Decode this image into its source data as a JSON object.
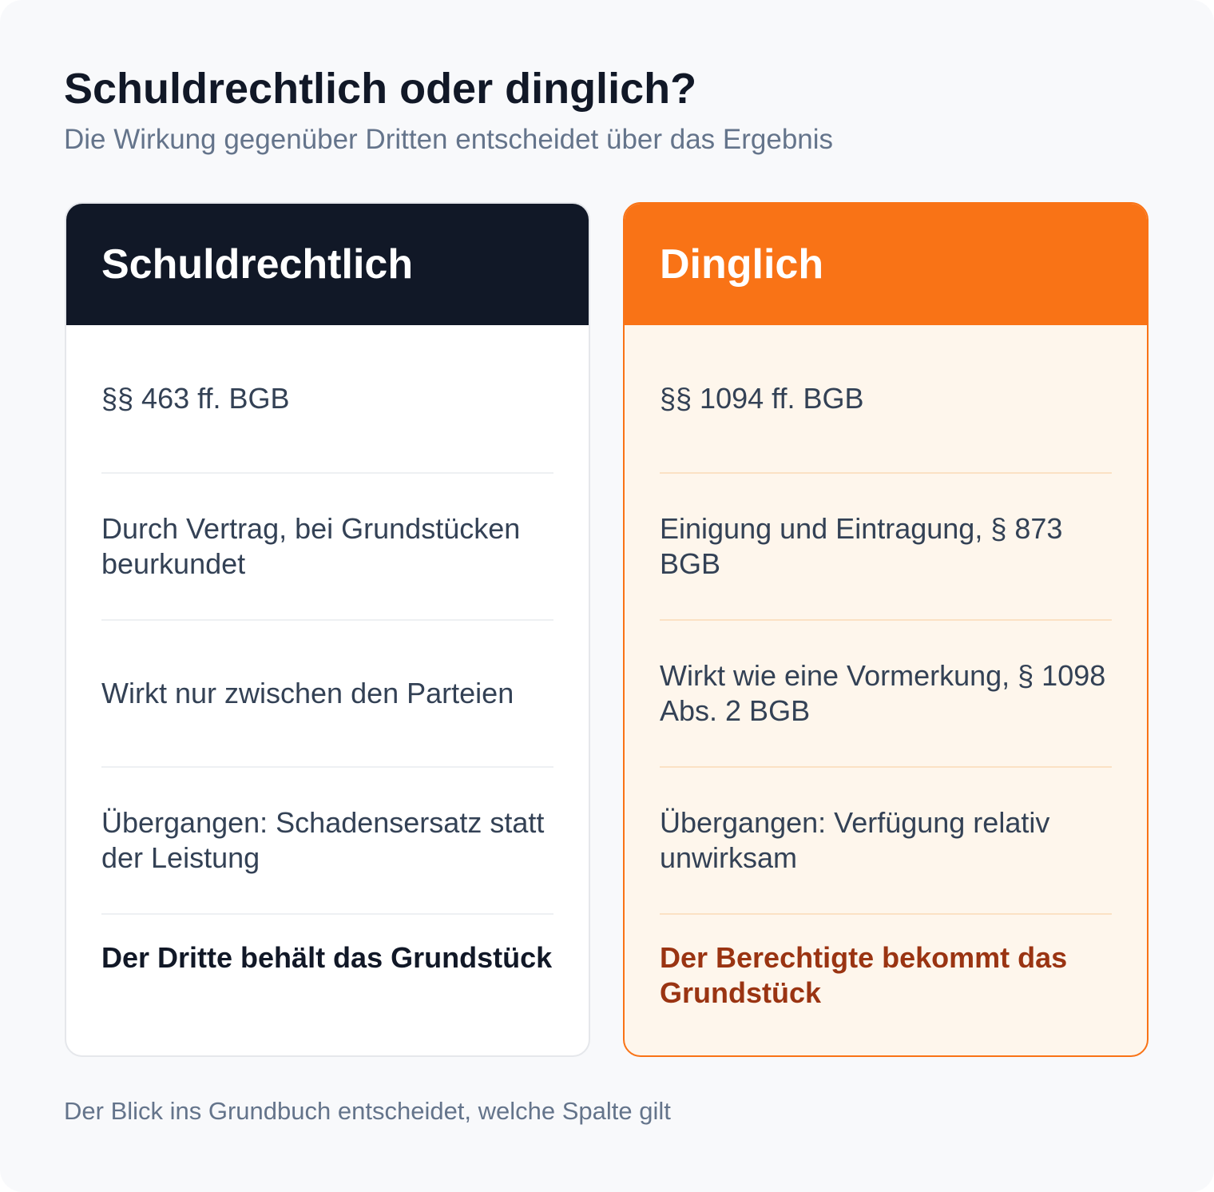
{
  "title": "Schuldrechtlich oder dinglich?",
  "subtitle": "Die Wirkung gegenüber Dritten entscheidet über das Ergebnis",
  "columns": [
    {
      "heading": "Schuldrechtlich",
      "header_color": "#111827",
      "rows": [
        "§§ 463 ff. BGB",
        "Durch Vertrag, bei Grundstücken beurkundet",
        "Wirkt nur zwischen den Parteien",
        "Übergangen: Schadensersatz statt der Leistung"
      ],
      "verdict": "Der Dritte behält das Grundstück"
    },
    {
      "heading": "Dinglich",
      "header_color": "#f97316",
      "rows": [
        "§§ 1094 ff. BGB",
        "Einigung und Eintragung, § 873 BGB",
        "Wirkt wie eine Vormerkung, § 1098 Abs. 2 BGB",
        "Übergangen: Verfügung relativ unwirksam"
      ],
      "verdict": "Der Berechtigte bekommt das Grundstück"
    }
  ],
  "footer": "Der Blick ins Grundbuch entscheidet, welche Spalte gilt"
}
